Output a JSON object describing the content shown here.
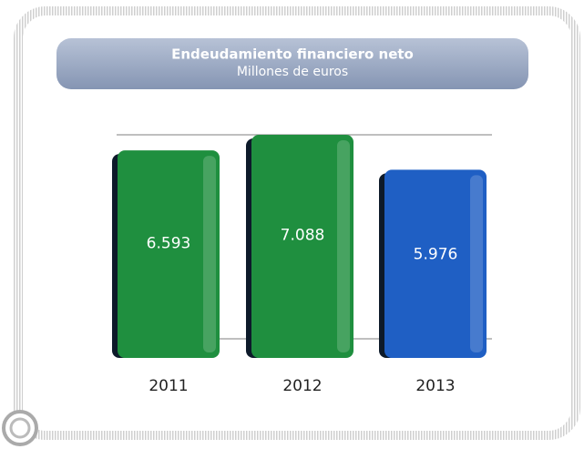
{
  "chart_data": {
    "type": "bar",
    "title": "Endeudamiento financiero neto",
    "subtitle": "Millones de euros",
    "categories": [
      "2011",
      "2012",
      "2013"
    ],
    "values": [
      6593,
      7088,
      5976
    ],
    "value_labels": [
      "6.593",
      "7.088",
      "5.976"
    ],
    "colors": [
      "#1f8f3f",
      "#1f8f3f",
      "#1f5fc4"
    ]
  }
}
